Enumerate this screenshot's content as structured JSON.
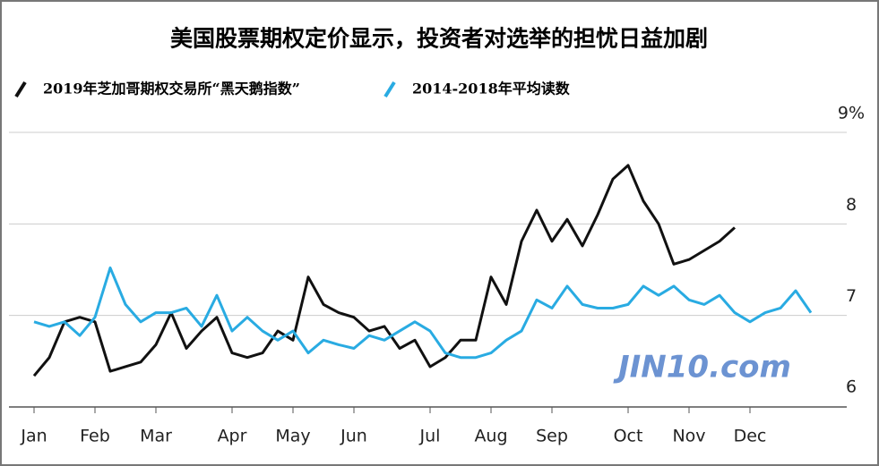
{
  "chart_data": {
    "type": "line",
    "title": "美国股票期权定价显示，投资者对选举的担忧日益加剧",
    "watermark": "JIN10.com",
    "categories": [
      "Jan",
      null,
      null,
      null,
      "Feb",
      null,
      null,
      null,
      "Mar",
      null,
      null,
      null,
      null,
      "Apr",
      null,
      null,
      null,
      "May",
      null,
      null,
      null,
      "Jun",
      null,
      null,
      null,
      null,
      "Jul",
      null,
      null,
      null,
      "Aug",
      null,
      null,
      null,
      "Sep",
      null,
      null,
      null,
      null,
      "Oct",
      null,
      null,
      null,
      "Nov",
      null,
      null,
      null,
      "Dec",
      null,
      null,
      null,
      null
    ],
    "series": [
      {
        "name": "2019年芝加哥期权交易所“黑天鹅指数”",
        "color": "#111111",
        "values": [
          6.34,
          6.54,
          6.93,
          6.98,
          6.93,
          6.39,
          6.44,
          6.49,
          6.68,
          7.03,
          6.64,
          6.83,
          6.98,
          6.59,
          6.54,
          6.59,
          6.83,
          6.73,
          7.42,
          7.12,
          7.03,
          6.98,
          6.83,
          6.88,
          6.64,
          6.73,
          6.44,
          6.54,
          6.73,
          6.73,
          7.42,
          7.12,
          7.81,
          8.15,
          7.81,
          8.05,
          7.76,
          8.1,
          8.49,
          8.64,
          8.25,
          8.0,
          7.56,
          7.61,
          7.71,
          7.81,
          7.96,
          null,
          null,
          null,
          null,
          null
        ]
      },
      {
        "name": "2014-2018年平均读数",
        "color": "#29abe2",
        "values": [
          6.93,
          6.88,
          6.93,
          6.78,
          6.98,
          7.52,
          7.12,
          6.93,
          7.03,
          7.03,
          7.08,
          6.88,
          7.22,
          6.83,
          6.98,
          6.83,
          6.73,
          6.83,
          6.59,
          6.73,
          6.68,
          6.64,
          6.78,
          6.73,
          6.83,
          6.93,
          6.83,
          6.59,
          6.54,
          6.54,
          6.59,
          6.73,
          6.83,
          7.17,
          7.08,
          7.32,
          7.12,
          7.08,
          7.08,
          7.12,
          7.32,
          7.22,
          7.32,
          7.17,
          7.12,
          7.22,
          7.03,
          6.93,
          7.03,
          7.08,
          7.27,
          7.03
        ]
      }
    ],
    "ylim": [
      6,
      9
    ],
    "yticks": [
      6,
      7,
      8,
      {
        "value": 9,
        "label": "9%"
      }
    ],
    "grid": true
  }
}
